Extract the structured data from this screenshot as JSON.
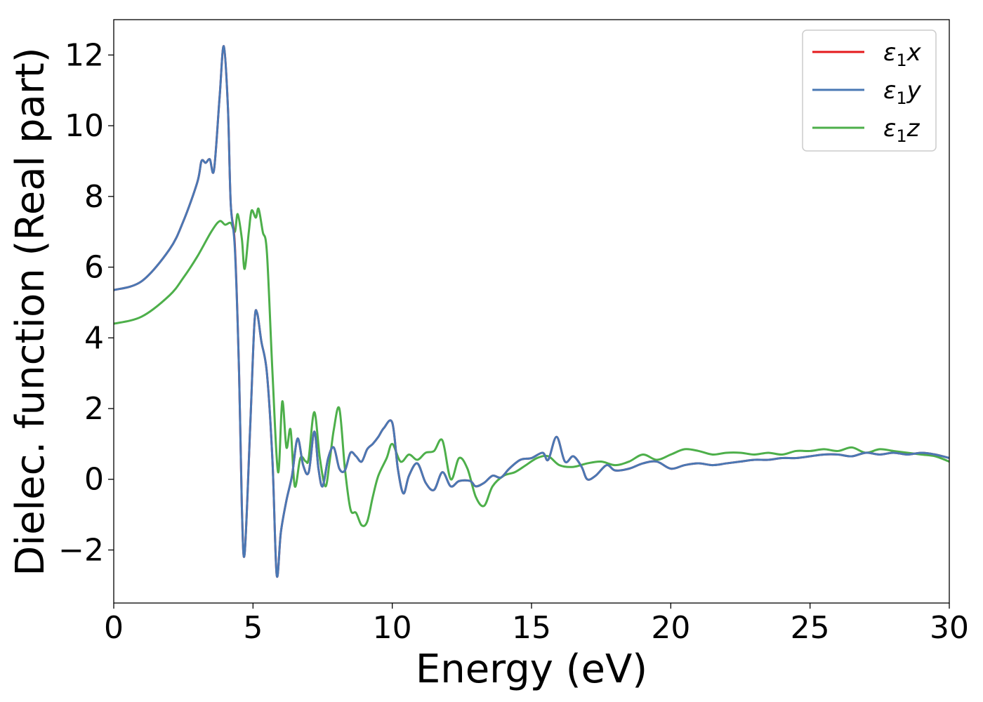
{
  "chart_data": {
    "type": "line",
    "title": "",
    "xlabel": "Energy (eV)",
    "ylabel": "Dielec. function (Real part)",
    "xlim": [
      0,
      30
    ],
    "ylim": [
      -3.5,
      13
    ],
    "xticks": [
      0,
      5,
      10,
      15,
      20,
      25,
      30
    ],
    "xtick_labels": [
      "0",
      "5",
      "10",
      "15",
      "20",
      "25",
      "30"
    ],
    "yticks": [
      -2,
      0,
      2,
      4,
      6,
      8,
      10,
      12
    ],
    "ytick_labels": [
      "−2",
      "0",
      "2",
      "4",
      "6",
      "8",
      "10",
      "12"
    ],
    "grid": false,
    "legend_position": "top-right",
    "series": [
      {
        "name": "ε1x",
        "label_base": "ε",
        "label_sub": "1",
        "label_tail": "x",
        "color": "#e41a1c",
        "x": [
          0,
          1,
          2,
          2.5,
          3.0,
          3.15,
          3.3,
          3.45,
          3.6,
          3.8,
          3.95,
          4.1,
          4.2,
          4.35,
          4.5,
          4.6,
          4.7,
          4.9,
          5.05,
          5.15,
          5.3,
          5.5,
          5.7,
          5.85,
          6.0,
          6.2,
          6.4,
          6.6,
          6.8,
          7.0,
          7.2,
          7.35,
          7.5,
          7.7,
          7.9,
          8.1,
          8.3,
          8.5,
          8.7,
          8.9,
          9.1,
          9.3,
          9.5,
          9.7,
          10.0,
          10.2,
          10.4,
          10.6,
          10.9,
          11.2,
          11.5,
          11.8,
          12.1,
          12.4,
          12.8,
          13.0,
          13.3,
          13.6,
          13.9,
          14.2,
          14.6,
          15.0,
          15.4,
          15.6,
          15.9,
          16.2,
          16.5,
          16.8,
          17.0,
          17.3,
          17.7,
          18.0,
          18.5,
          19.0,
          19.5,
          20.0,
          20.5,
          21.0,
          21.5,
          22.0,
          22.5,
          23.0,
          23.5,
          24.0,
          24.5,
          25.0,
          25.5,
          26.0,
          26.5,
          27.0,
          27.5,
          28.0,
          28.5,
          29.0,
          29.5,
          30.0
        ],
        "y": [
          5.35,
          5.6,
          6.5,
          7.3,
          8.4,
          9.0,
          8.95,
          9.05,
          8.75,
          10.8,
          12.25,
          10.5,
          7.8,
          6.6,
          3.0,
          -0.8,
          -2.1,
          1.5,
          4.4,
          4.7,
          3.9,
          3.0,
          0.5,
          -2.7,
          -1.5,
          -0.6,
          0.1,
          1.15,
          0.4,
          0.2,
          1.35,
          0.3,
          -0.2,
          0.6,
          0.9,
          0.3,
          0.25,
          0.75,
          0.65,
          0.5,
          0.85,
          1.0,
          1.2,
          1.45,
          1.6,
          0.3,
          -0.4,
          0.1,
          0.45,
          -0.1,
          -0.3,
          0.2,
          -0.2,
          -0.05,
          -0.05,
          -0.2,
          -0.1,
          0.1,
          0.05,
          0.3,
          0.55,
          0.6,
          0.75,
          0.55,
          1.2,
          0.5,
          0.65,
          0.35,
          0.0,
          0.1,
          0.4,
          0.25,
          0.3,
          0.45,
          0.5,
          0.3,
          0.4,
          0.45,
          0.4,
          0.45,
          0.5,
          0.55,
          0.55,
          0.6,
          0.6,
          0.65,
          0.7,
          0.7,
          0.65,
          0.75,
          0.7,
          0.75,
          0.7,
          0.75,
          0.7,
          0.6
        ]
      },
      {
        "name": "ε1y",
        "label_base": "ε",
        "label_sub": "1",
        "label_tail": "y",
        "color": "#4a78b4",
        "x": [
          0,
          1,
          2,
          2.5,
          3.0,
          3.15,
          3.3,
          3.45,
          3.6,
          3.8,
          3.95,
          4.1,
          4.2,
          4.35,
          4.5,
          4.6,
          4.7,
          4.9,
          5.05,
          5.15,
          5.3,
          5.5,
          5.7,
          5.85,
          6.0,
          6.2,
          6.4,
          6.6,
          6.8,
          7.0,
          7.2,
          7.35,
          7.5,
          7.7,
          7.9,
          8.1,
          8.3,
          8.5,
          8.7,
          8.9,
          9.1,
          9.3,
          9.5,
          9.7,
          10.0,
          10.2,
          10.4,
          10.6,
          10.9,
          11.2,
          11.5,
          11.8,
          12.1,
          12.4,
          12.8,
          13.0,
          13.3,
          13.6,
          13.9,
          14.2,
          14.6,
          15.0,
          15.4,
          15.6,
          15.9,
          16.2,
          16.5,
          16.8,
          17.0,
          17.3,
          17.7,
          18.0,
          18.5,
          19.0,
          19.5,
          20.0,
          20.5,
          21.0,
          21.5,
          22.0,
          22.5,
          23.0,
          23.5,
          24.0,
          24.5,
          25.0,
          25.5,
          26.0,
          26.5,
          27.0,
          27.5,
          28.0,
          28.5,
          29.0,
          29.5,
          30.0
        ],
        "y": [
          5.35,
          5.6,
          6.5,
          7.3,
          8.4,
          9.0,
          8.95,
          9.05,
          8.75,
          10.8,
          12.25,
          10.5,
          7.8,
          6.5,
          3.0,
          -0.8,
          -2.1,
          1.5,
          4.4,
          4.7,
          3.9,
          3.0,
          0.5,
          -2.7,
          -1.5,
          -0.6,
          0.1,
          1.15,
          0.4,
          0.2,
          1.35,
          0.3,
          -0.2,
          0.6,
          0.9,
          0.3,
          0.25,
          0.75,
          0.65,
          0.5,
          0.85,
          1.0,
          1.2,
          1.45,
          1.6,
          0.3,
          -0.4,
          0.1,
          0.45,
          -0.1,
          -0.3,
          0.2,
          -0.2,
          -0.05,
          -0.05,
          -0.2,
          -0.1,
          0.1,
          0.05,
          0.3,
          0.55,
          0.6,
          0.75,
          0.55,
          1.2,
          0.5,
          0.65,
          0.35,
          0.0,
          0.1,
          0.4,
          0.25,
          0.3,
          0.45,
          0.5,
          0.3,
          0.4,
          0.45,
          0.4,
          0.45,
          0.5,
          0.55,
          0.55,
          0.6,
          0.6,
          0.65,
          0.7,
          0.7,
          0.65,
          0.75,
          0.7,
          0.75,
          0.7,
          0.75,
          0.7,
          0.6
        ]
      },
      {
        "name": "ε1z",
        "label_base": "ε",
        "label_sub": "1",
        "label_tail": "z",
        "color": "#4daf4a",
        "x": [
          0,
          1,
          2,
          2.5,
          3.0,
          3.5,
          3.8,
          4.0,
          4.2,
          4.35,
          4.45,
          4.6,
          4.7,
          4.85,
          4.95,
          5.1,
          5.2,
          5.35,
          5.5,
          5.7,
          5.9,
          6.05,
          6.2,
          6.35,
          6.5,
          6.7,
          6.9,
          7.0,
          7.2,
          7.4,
          7.6,
          7.75,
          7.9,
          8.1,
          8.3,
          8.5,
          8.7,
          8.9,
          9.1,
          9.3,
          9.5,
          9.8,
          10.0,
          10.3,
          10.6,
          10.9,
          11.2,
          11.5,
          11.8,
          12.1,
          12.4,
          12.7,
          13.0,
          13.3,
          13.6,
          14.0,
          14.4,
          14.8,
          15.2,
          15.6,
          16.0,
          16.5,
          17.0,
          17.5,
          18.0,
          18.5,
          19.0,
          19.5,
          20.0,
          20.5,
          21.0,
          21.5,
          22.0,
          22.5,
          23.0,
          23.5,
          24.0,
          24.5,
          25.0,
          25.5,
          26.0,
          26.5,
          27.0,
          27.5,
          28.0,
          28.5,
          29.0,
          29.5,
          30.0
        ],
        "y": [
          4.4,
          4.6,
          5.2,
          5.7,
          6.3,
          7.0,
          7.3,
          7.2,
          7.25,
          7.0,
          7.5,
          6.8,
          5.95,
          7.0,
          7.6,
          7.4,
          7.65,
          7.0,
          6.4,
          3.0,
          0.2,
          2.2,
          0.9,
          1.4,
          -0.2,
          0.6,
          0.5,
          0.6,
          1.9,
          0.6,
          -0.2,
          0.5,
          1.4,
          2.0,
          0.3,
          -0.85,
          -0.95,
          -1.3,
          -1.2,
          -0.5,
          0.1,
          0.6,
          1.0,
          0.5,
          0.7,
          0.55,
          0.75,
          0.8,
          1.1,
          0.0,
          0.6,
          0.3,
          -0.5,
          -0.75,
          -0.2,
          0.1,
          0.2,
          0.4,
          0.6,
          0.65,
          0.4,
          0.35,
          0.45,
          0.5,
          0.4,
          0.5,
          0.7,
          0.55,
          0.7,
          0.85,
          0.8,
          0.7,
          0.75,
          0.75,
          0.7,
          0.75,
          0.7,
          0.8,
          0.8,
          0.85,
          0.8,
          0.9,
          0.75,
          0.85,
          0.8,
          0.75,
          0.7,
          0.65,
          0.5
        ]
      }
    ]
  }
}
